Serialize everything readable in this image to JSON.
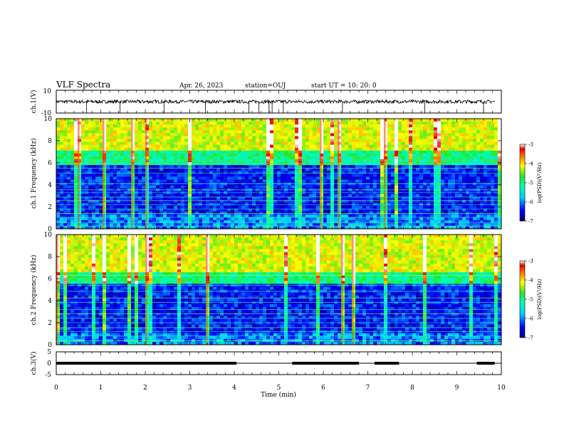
{
  "header": {
    "title": "VLF Spectra",
    "date": "Apr. 26, 2023",
    "station": "station=OUJ",
    "start": "start UT =  10: 20: 0"
  },
  "chart_data": [
    {
      "type": "line",
      "name": "ch1-waveform",
      "ylabel": "ch.1(V)",
      "ylim": [
        -10,
        10
      ],
      "yticks": [
        "10",
        "-10"
      ],
      "xlim": [
        0,
        10
      ],
      "baseline": 0,
      "noise_amplitude": 1.5,
      "spikes_min": [
        0.68,
        1.43,
        2.42,
        3.35,
        4.33,
        4.55,
        4.78,
        4.85,
        5.1,
        6.43,
        8.28,
        9.6
      ],
      "color": "#000000"
    },
    {
      "type": "heatmap",
      "name": "ch1-spectrogram",
      "ylabel": "ch.1 Frequency (kHz)",
      "ylim": [
        0,
        10
      ],
      "yticks": [
        "0",
        "2",
        "4",
        "6",
        "8",
        "10"
      ],
      "xlim": [
        0,
        10
      ],
      "colorbar": {
        "label": "log(PSD)(V²/Hz)",
        "range": [
          -7,
          -3
        ],
        "ticks": [
          "-7",
          "-6",
          "-5",
          "-4",
          "-3"
        ]
      },
      "lines_khz": [
        0.25,
        0.6,
        1.05,
        1.4,
        1.8,
        2.2,
        2.55,
        2.9,
        3.3,
        3.55,
        4.1,
        5.05,
        5.5,
        5.9,
        6.2
      ],
      "quiet_band_khz": [
        1.2,
        5.8
      ]
    },
    {
      "type": "heatmap",
      "name": "ch2-spectrogram",
      "ylabel": "ch.2 Frequency (kHz)",
      "ylim": [
        0,
        10
      ],
      "yticks": [
        "0",
        "2",
        "4",
        "6",
        "8",
        "10"
      ],
      "xlim": [
        0,
        10
      ],
      "colorbar": {
        "label": "log(PSD)(V²/Hz)",
        "range": [
          -7,
          -3
        ],
        "ticks": [
          "-7",
          "-6",
          "-5",
          "-4",
          "-3"
        ]
      },
      "lines_khz": [
        0.35,
        0.8,
        1.2,
        1.55,
        2.0,
        2.4,
        2.8,
        3.2,
        3.85,
        4.25,
        4.85,
        5.4,
        6.3
      ],
      "quiet_band_khz": [
        1.0,
        5.5
      ]
    },
    {
      "type": "line",
      "name": "ch3-signal",
      "ylabel": "ch.3(V)",
      "ylim": [
        -5,
        5
      ],
      "yticks": [
        "5",
        "0",
        "-5"
      ],
      "xlim": [
        0,
        10
      ],
      "xlabel": "Time (min)",
      "xticks": [
        "0",
        "1",
        "2",
        "3",
        "4",
        "5",
        "6",
        "7",
        "8",
        "9",
        "10"
      ],
      "thick_segments_min": [
        [
          0,
          4.05
        ],
        [
          5.3,
          6.8
        ],
        [
          7.15,
          7.7
        ],
        [
          9.45,
          9.85
        ]
      ],
      "level_v": 0,
      "color": "#000000"
    }
  ]
}
